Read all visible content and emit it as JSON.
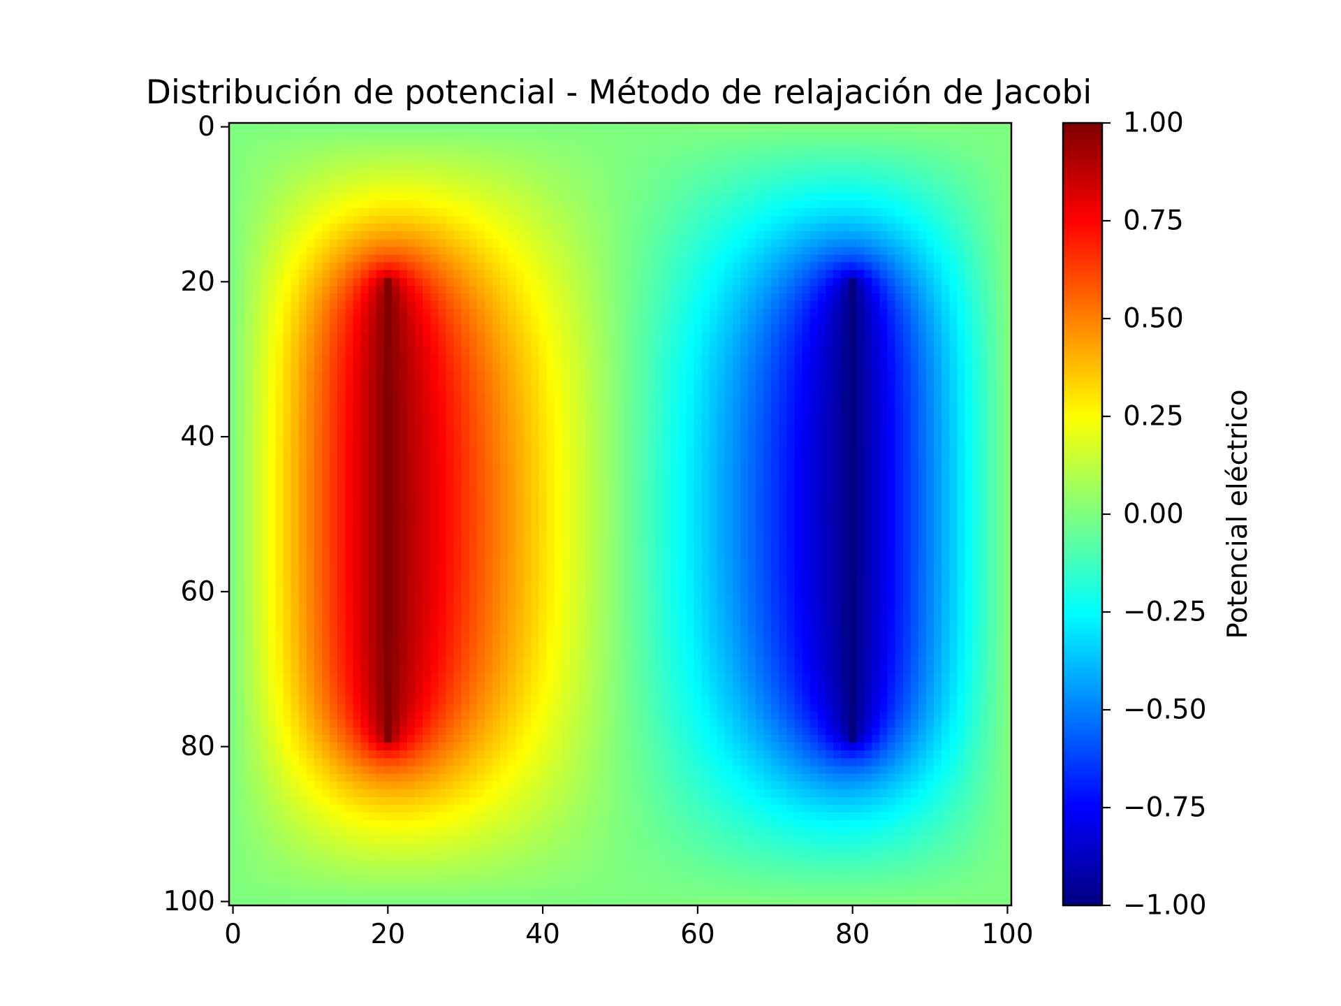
{
  "chart_data": {
    "type": "heatmap",
    "title": "Distribución de potencial - Método de relajación de Jacobi",
    "xlabel": "",
    "ylabel": "",
    "grid_shape": [
      101,
      101
    ],
    "xlim": [
      0,
      100
    ],
    "ylim": [
      100,
      0
    ],
    "x_ticks": [
      "0",
      "20",
      "40",
      "60",
      "80",
      "100"
    ],
    "y_ticks": [
      "0",
      "20",
      "40",
      "60",
      "80",
      "100"
    ],
    "colormap": "jet",
    "value_range": [
      -1.0,
      1.0
    ],
    "grid": false,
    "boundary_value": 0.0,
    "fixed_conductors": [
      {
        "x": 20,
        "y_start": 20,
        "y_end": 79,
        "value": 1.0
      },
      {
        "x": 80,
        "y_start": 20,
        "y_end": 79,
        "value": -1.0
      }
    ],
    "colorbar": {
      "label": "Potencial eléctrico",
      "ticks": [
        "1.00",
        "0.75",
        "0.50",
        "0.25",
        "0.00",
        "−0.25",
        "−0.50",
        "−0.75",
        "−1.00"
      ],
      "placement": "right"
    }
  }
}
